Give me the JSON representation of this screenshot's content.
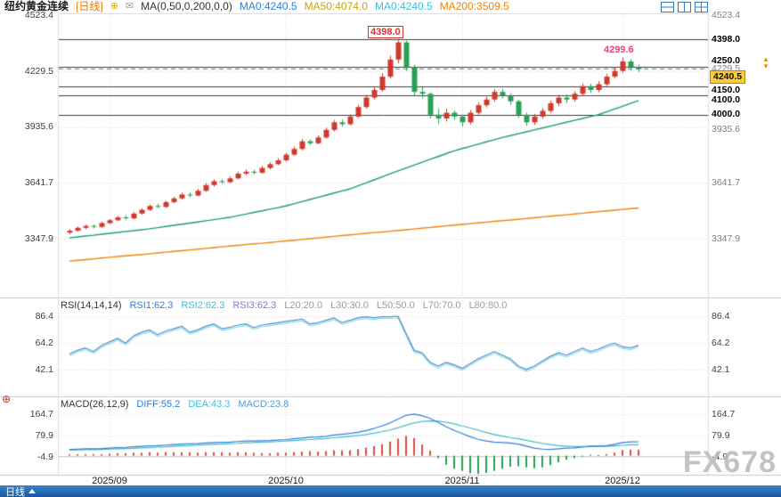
{
  "header": {
    "symbol": "纽约黄金连续",
    "period": "[日线]",
    "ma_title": "MA(0,50,0,200,0,0)",
    "ma_items": [
      {
        "text": "MA0:4240.5",
        "color": "#2f7ed8"
      },
      {
        "text": "MA50:4074.0",
        "color": "#c9a40a"
      },
      {
        "text": "MA0:4240.5",
        "color": "#3bc0dd"
      },
      {
        "text": "MA200:3509.5",
        "color": "#f0830a"
      }
    ]
  },
  "icons": {
    "plus_circle": "⊕",
    "mail": "✉",
    "caret_up": "▲",
    "caret_down": "▼",
    "crosshair": "⊕"
  },
  "toolbar": {
    "layout_icons": [
      "single-pane-icon",
      "split-pane-icon",
      "grid-pane-icon"
    ]
  },
  "price_panel": {
    "left_axis": [
      "4523.4",
      "4229.5",
      "3935.6",
      "3641.7",
      "3347.9"
    ],
    "right_axis_gray": [
      "4523.4",
      "4229.5",
      "3935.6",
      "3641.7",
      "3347.9"
    ],
    "level_labels": [
      "4398.0",
      "4250.0",
      "4150.0",
      "4100.0",
      "4000.0"
    ],
    "last_price": "4240.5"
  },
  "rsi_panel": {
    "title": "RSI(14,14,14)",
    "values": [
      {
        "text": "RSI1:62.3",
        "color": "#2f7ed8"
      },
      {
        "text": "RSI2:62.3",
        "color": "#3bc0dd"
      },
      {
        "text": "RSI3:62.3",
        "color": "#8877d0"
      }
    ],
    "guides": [
      "L20:20.0",
      "L30:30.0",
      "L50:50.0",
      "L70:70.0",
      "L80:80.0"
    ],
    "axis": [
      "86.4",
      "64.2",
      "42.1"
    ]
  },
  "macd_panel": {
    "title": "MACD(26,12,9)",
    "values": [
      {
        "text": "DIFF:55.2",
        "color": "#2f7ed8"
      },
      {
        "text": "DEA:43.3",
        "color": "#3bc0dd"
      },
      {
        "text": "MACD:23.8",
        "color": "#4a9fd8"
      }
    ],
    "axis": [
      "164.7",
      "79.9",
      "-4.9"
    ]
  },
  "footer": {
    "tab": "日线",
    "watermark": "FX678"
  },
  "chart_data": [
    {
      "type": "candlestick",
      "title": "纽约黄金连续 日线",
      "up_color": "#cf3a2d",
      "down_color": "#2aa054",
      "axis_ticks": [
        4523.4,
        4229.5,
        3935.6,
        3641.7,
        3347.9
      ],
      "levels": [
        4398,
        4250,
        4150,
        4100,
        4000
      ],
      "last_price": 4240.5,
      "ylim": [
        3200,
        4550
      ],
      "month_ticks": [
        {
          "index": 5,
          "label": "2025/09"
        },
        {
          "index": 27,
          "label": "2025/10"
        },
        {
          "index": 49,
          "label": "2025/11"
        },
        {
          "index": 69,
          "label": "2025/12"
        }
      ],
      "annotations": [
        {
          "index": 41,
          "text": "4398.0",
          "color": "#d8342c"
        },
        {
          "index": 69,
          "text": "4299.6",
          "color": "#e8457a"
        }
      ],
      "candles": [
        [
          3380,
          3398,
          3372,
          3390
        ],
        [
          3390,
          3412,
          3385,
          3405
        ],
        [
          3405,
          3422,
          3398,
          3415
        ],
        [
          3415,
          3424,
          3402,
          3410
        ],
        [
          3410,
          3438,
          3405,
          3430
        ],
        [
          3430,
          3452,
          3424,
          3445
        ],
        [
          3445,
          3468,
          3440,
          3460
        ],
        [
          3460,
          3470,
          3448,
          3455
        ],
        [
          3455,
          3488,
          3450,
          3480
        ],
        [
          3480,
          3508,
          3474,
          3500
        ],
        [
          3500,
          3528,
          3494,
          3520
        ],
        [
          3520,
          3532,
          3508,
          3515
        ],
        [
          3515,
          3548,
          3510,
          3540
        ],
        [
          3540,
          3568,
          3534,
          3560
        ],
        [
          3560,
          3590,
          3554,
          3580
        ],
        [
          3580,
          3592,
          3566,
          3575
        ],
        [
          3575,
          3610,
          3570,
          3600
        ],
        [
          3600,
          3640,
          3594,
          3630
        ],
        [
          3630,
          3660,
          3622,
          3650
        ],
        [
          3650,
          3662,
          3636,
          3645
        ],
        [
          3645,
          3675,
          3640,
          3665
        ],
        [
          3665,
          3700,
          3660,
          3690
        ],
        [
          3690,
          3712,
          3682,
          3700
        ],
        [
          3700,
          3710,
          3686,
          3695
        ],
        [
          3695,
          3730,
          3690,
          3720
        ],
        [
          3720,
          3750,
          3712,
          3740
        ],
        [
          3740,
          3772,
          3734,
          3760
        ],
        [
          3760,
          3800,
          3752,
          3790
        ],
        [
          3790,
          3832,
          3784,
          3820
        ],
        [
          3820,
          3872,
          3812,
          3860
        ],
        [
          3860,
          3870,
          3840,
          3850
        ],
        [
          3850,
          3892,
          3844,
          3880
        ],
        [
          3880,
          3932,
          3874,
          3920
        ],
        [
          3920,
          3972,
          3912,
          3960
        ],
        [
          3960,
          3974,
          3938,
          3950
        ],
        [
          3950,
          4002,
          3944,
          3990
        ],
        [
          3990,
          4052,
          3984,
          4040
        ],
        [
          4040,
          4104,
          4032,
          4090
        ],
        [
          4090,
          4148,
          4080,
          4130
        ],
        [
          4130,
          4218,
          4120,
          4200
        ],
        [
          4200,
          4310,
          4190,
          4290
        ],
        [
          4290,
          4398,
          4270,
          4380
        ],
        [
          4380,
          4390,
          4230,
          4250
        ],
        [
          4250,
          4262,
          4100,
          4120
        ],
        [
          4120,
          4150,
          4086,
          4110
        ],
        [
          4110,
          4118,
          3980,
          4000
        ],
        [
          4000,
          4030,
          3952,
          3980
        ],
        [
          3980,
          4032,
          3964,
          4010
        ],
        [
          4010,
          4022,
          3972,
          3990
        ],
        [
          3990,
          4000,
          3938,
          3960
        ],
        [
          3960,
          4024,
          3948,
          4010
        ],
        [
          4010,
          4064,
          4000,
          4050
        ],
        [
          4050,
          4094,
          4038,
          4080
        ],
        [
          4080,
          4134,
          4068,
          4120
        ],
        [
          4120,
          4136,
          4086,
          4100
        ],
        [
          4100,
          4112,
          4052,
          4070
        ],
        [
          4070,
          4078,
          3984,
          4000
        ],
        [
          4000,
          4010,
          3942,
          3960
        ],
        [
          3960,
          4004,
          3946,
          3990
        ],
        [
          3990,
          4034,
          3978,
          4020
        ],
        [
          4020,
          4074,
          4008,
          4060
        ],
        [
          4060,
          4104,
          4046,
          4090
        ],
        [
          4090,
          4106,
          4062,
          4080
        ],
        [
          4080,
          4124,
          4068,
          4110
        ],
        [
          4110,
          4164,
          4098,
          4150
        ],
        [
          4150,
          4162,
          4114,
          4130
        ],
        [
          4130,
          4176,
          4118,
          4160
        ],
        [
          4160,
          4214,
          4150,
          4200
        ],
        [
          4200,
          4246,
          4190,
          4230
        ],
        [
          4230,
          4299.6,
          4220,
          4280
        ],
        [
          4280,
          4292,
          4232,
          4250
        ],
        [
          4250,
          4262,
          4224,
          4240.5
        ]
      ],
      "series": [
        {
          "name": "MA50",
          "color": "#18a06a",
          "values": [
            3352,
            3357,
            3362,
            3366,
            3371,
            3376,
            3381,
            3386,
            3390,
            3395,
            3400,
            3406,
            3412,
            3418,
            3424,
            3430,
            3436,
            3442,
            3448,
            3454,
            3460,
            3469,
            3477,
            3486,
            3494,
            3503,
            3511,
            3520,
            3531,
            3543,
            3554,
            3565,
            3576,
            3588,
            3599,
            3610,
            3626,
            3641,
            3657,
            3673,
            3689,
            3704,
            3720,
            3735,
            3750,
            3765,
            3780,
            3795,
            3810,
            3822,
            3833,
            3845,
            3857,
            3868,
            3880,
            3890,
            3900,
            3910,
            3920,
            3930,
            3940,
            3950,
            3960,
            3970,
            3980,
            3990,
            4000,
            4015,
            4030,
            4044,
            4059,
            4074
          ]
        },
        {
          "name": "MA200",
          "color": "#f0830a",
          "values": [
            3230,
            3234,
            3238,
            3242,
            3246,
            3250,
            3254,
            3258,
            3261,
            3265,
            3269,
            3273,
            3277,
            3281,
            3285,
            3289,
            3293,
            3297,
            3301,
            3305,
            3309,
            3313,
            3317,
            3321,
            3324,
            3328,
            3332,
            3336,
            3340,
            3344,
            3348,
            3352,
            3356,
            3360,
            3364,
            3368,
            3372,
            3376,
            3380,
            3383,
            3387,
            3391,
            3395,
            3399,
            3403,
            3407,
            3411,
            3415,
            3419,
            3423,
            3427,
            3431,
            3435,
            3439,
            3443,
            3446,
            3450,
            3454,
            3458,
            3462,
            3466,
            3470,
            3474,
            3478,
            3482,
            3486,
            3490,
            3494,
            3498,
            3502,
            3506,
            3509.5
          ]
        }
      ]
    },
    {
      "type": "line",
      "name": "RSI",
      "axis_ticks": [
        86.4,
        64.2,
        42.1
      ],
      "ylim": [
        20,
        95
      ],
      "colors": {
        "rsi1": "#4a90c4",
        "rsi2": "#3bc0dd"
      },
      "values": [
        55,
        58,
        60,
        57,
        62,
        65,
        68,
        64,
        70,
        73,
        75,
        71,
        74,
        76,
        78,
        73,
        75,
        78,
        80,
        76,
        77,
        79,
        80,
        77,
        79,
        80,
        81,
        82,
        83,
        84,
        80,
        81,
        83,
        85,
        81,
        83,
        85,
        86,
        85,
        86,
        86,
        86.4,
        72,
        58,
        56,
        48,
        45,
        48,
        46,
        43,
        47,
        51,
        54,
        57,
        54,
        51,
        45,
        42.1,
        45,
        49,
        53,
        56,
        54,
        57,
        60,
        57,
        59,
        62,
        64,
        61,
        60,
        62.3
      ]
    },
    {
      "type": "macd",
      "axis_ticks": [
        164.7,
        79.9,
        -4.9
      ],
      "ylim": [
        -85,
        180
      ],
      "colors": {
        "diff": "#2f7ed8",
        "dea": "#45b8c8",
        "pos": "#d94f43",
        "neg": "#2aa054"
      },
      "diff": [
        25,
        26,
        27,
        27,
        28,
        30,
        32,
        33,
        35,
        37,
        39,
        40,
        42,
        44,
        46,
        47,
        48,
        50,
        52,
        53,
        54,
        56,
        58,
        58,
        59,
        60,
        62,
        64,
        67,
        70,
        73,
        74,
        77,
        82,
        85,
        88,
        93,
        100,
        108,
        118,
        130,
        145,
        160,
        165,
        158,
        148,
        132,
        115,
        100,
        88,
        75,
        65,
        58,
        54,
        52,
        50,
        46,
        38,
        30,
        26,
        25,
        27,
        30,
        31,
        34,
        38,
        38,
        40,
        45,
        52,
        55,
        55.2
      ],
      "dea": [
        22,
        23,
        24,
        24,
        25,
        26,
        27,
        28,
        29,
        31,
        32,
        34,
        35,
        37,
        39,
        40,
        42,
        43,
        45,
        46,
        48,
        49,
        51,
        52,
        54,
        55,
        56,
        58,
        60,
        62,
        64,
        66,
        68,
        71,
        74,
        77,
        80,
        84,
        89,
        95,
        102,
        111,
        121,
        130,
        136,
        138,
        137,
        133,
        126,
        118,
        110,
        101,
        92,
        84,
        78,
        72,
        67,
        61,
        55,
        49,
        44,
        40,
        38,
        36,
        36,
        36,
        37,
        37,
        39,
        41,
        43,
        43.3
      ]
    }
  ]
}
